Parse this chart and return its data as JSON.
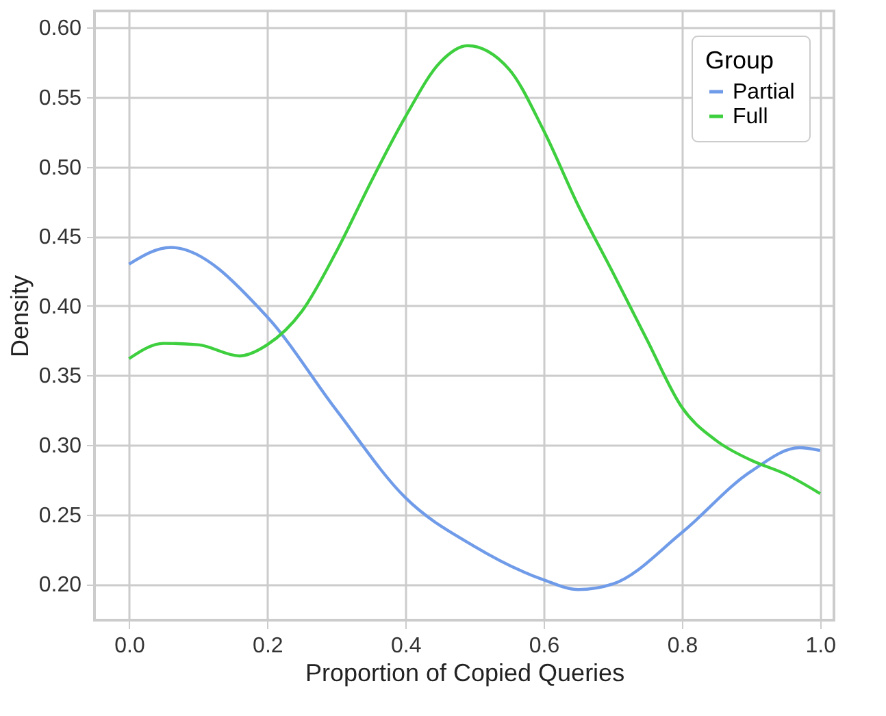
{
  "chart_data": {
    "type": "line",
    "xlabel": "Proportion of Copied Queries",
    "ylabel": "Density",
    "legend_title": "Group",
    "legend": "top right",
    "grid": true,
    "line_style": "solid",
    "marker": "none",
    "xlim": [
      -0.05,
      1.02
    ],
    "ylim": [
      0.174,
      0.612
    ],
    "xticks": [
      {
        "value": 0,
        "label": "0.0"
      },
      {
        "value": 0.2,
        "label": "0.2"
      },
      {
        "value": 0.4,
        "label": "0.4"
      },
      {
        "value": 0.6,
        "label": "0.6"
      },
      {
        "value": 0.8,
        "label": "0.8"
      },
      {
        "value": 1,
        "label": "1.0"
      }
    ],
    "yticks": [
      {
        "value": 0.2,
        "label": "0.20"
      },
      {
        "value": 0.25,
        "label": "0.25"
      },
      {
        "value": 0.3,
        "label": "0.30"
      },
      {
        "value": 0.35,
        "label": "0.35"
      },
      {
        "value": 0.4,
        "label": "0.40"
      },
      {
        "value": 0.45,
        "label": "0.45"
      },
      {
        "value": 0.5,
        "label": "0.50"
      },
      {
        "value": 0.55,
        "label": "0.55"
      },
      {
        "value": 0.6,
        "label": "0.60"
      }
    ],
    "series": [
      {
        "name": "Partial",
        "color": "#6f9be8",
        "x": [
          0,
          0.06,
          0.2,
          0.3,
          0.4,
          0.5,
          0.6,
          0.65,
          0.7,
          0.8,
          0.9,
          0.97,
          1.0
        ],
        "values": [
          0.43,
          0.442,
          0.392,
          0.325,
          0.262,
          0.227,
          0.203,
          0.196,
          0.2,
          0.237,
          0.281,
          0.298,
          0.296
        ]
      },
      {
        "name": "Full",
        "color": "#3ecf3e",
        "x": [
          0,
          0.05,
          0.1,
          0.16,
          0.2,
          0.25,
          0.3,
          0.35,
          0.4,
          0.45,
          0.49,
          0.55,
          0.6,
          0.65,
          0.7,
          0.75,
          0.8,
          0.85,
          0.9,
          0.95,
          1.0
        ],
        "values": [
          0.362,
          0.373,
          0.372,
          0.364,
          0.372,
          0.396,
          0.439,
          0.489,
          0.536,
          0.575,
          0.587,
          0.57,
          0.526,
          0.472,
          0.424,
          0.375,
          0.327,
          0.303,
          0.289,
          0.279,
          0.265
        ]
      }
    ]
  }
}
